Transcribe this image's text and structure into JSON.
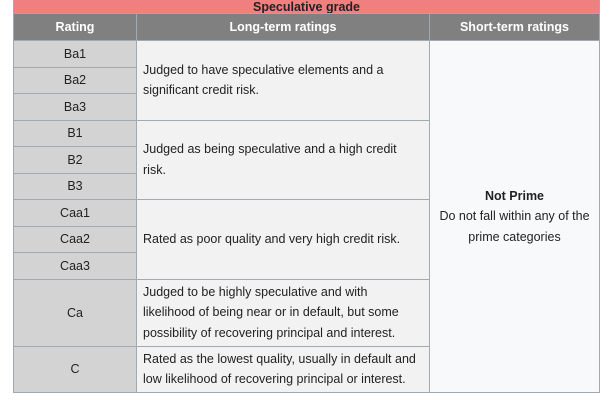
{
  "table": {
    "group_heading": "Speculative grade",
    "headers": {
      "rating": "Rating",
      "long_term": "Long-term ratings",
      "short_term": "Short-term ratings"
    },
    "ratings": [
      "Ba1",
      "Ba2",
      "Ba3",
      "B1",
      "B2",
      "B3",
      "Caa1",
      "Caa2",
      "Caa3",
      "Ca",
      "C"
    ],
    "long_term_descriptions": [
      "Judged to have speculative elements and a significant credit risk.",
      "Judged as being speculative and a high credit risk.",
      "Rated as poor quality and very high credit risk.",
      "Judged to be highly speculative and with likelihood of being near or in default, but some possibility of recovering principal and interest.",
      "Rated as the lowest quality, usually in default and low likelihood of recovering principal or interest."
    ],
    "short_term": {
      "title": "Not Prime",
      "description": "Do not fall within any of the prime categories"
    }
  }
}
